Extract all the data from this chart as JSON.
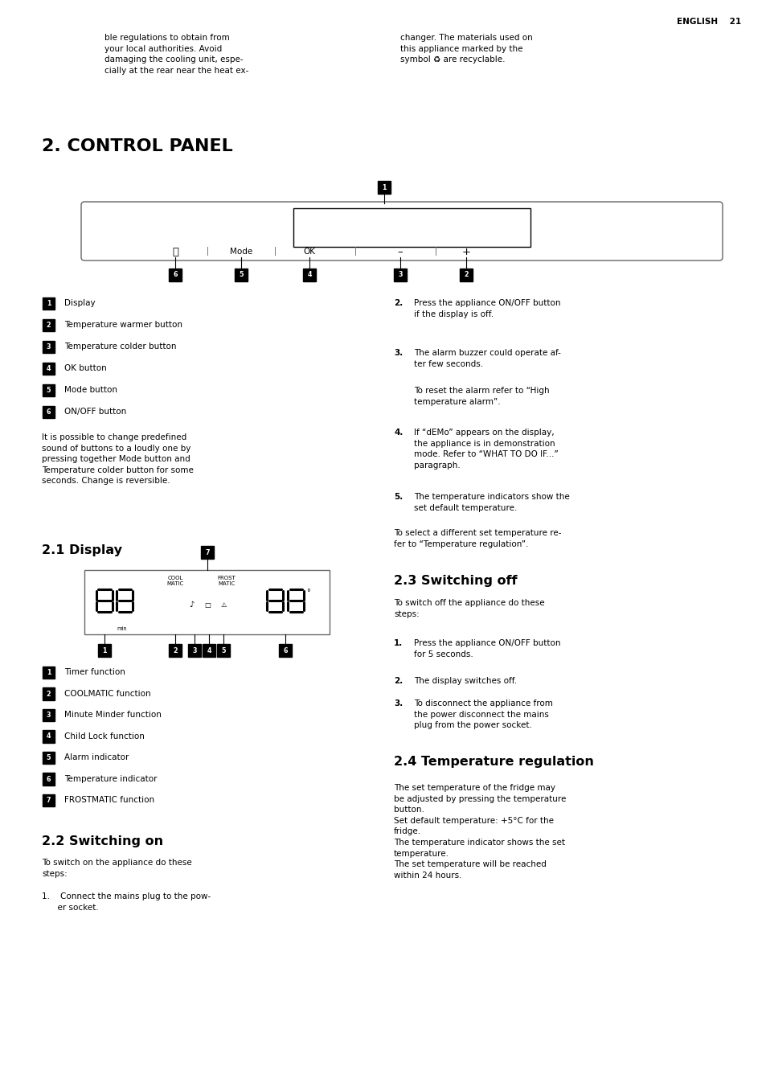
{
  "bg_color": "#ffffff",
  "page_width": 9.54,
  "page_height": 13.52,
  "header_text": "ENGLISH    21",
  "intro_left": "ble regulations to obtain from\nyour local authorities. Avoid\ndamaging the cooling unit, espe-\ncially at the rear near the heat ex-",
  "intro_right": "changer. The materials used on\nthis appliance marked by the\nsymbol ♻ are recyclable.",
  "section_title": "2. CONTROL PANEL",
  "labels_left": [
    "Display",
    "Temperature warmer button",
    "Temperature colder button",
    "OK button",
    "Mode button",
    "ON/OFF button"
  ],
  "labels_left_nums": [
    1,
    2,
    3,
    4,
    5,
    6
  ],
  "labels_extra": "It is possible to change predefined\nsound of buttons to a loudly one by\npressing together Mode button and\nTemperature colder button for some\nseconds. Change is reversible.",
  "sub21": "2.1 Display",
  "sub22": "2.2 Switching on",
  "sub23": "2.3 Switching off",
  "sub24": "2.4 Temperature regulation",
  "display_labels": [
    "Timer function",
    "COOLMATIC function",
    "Minute Minder function",
    "Child Lock function",
    "Alarm indicator",
    "Temperature indicator",
    "FROSTMATIC function"
  ],
  "display_labels_nums": [
    1,
    2,
    3,
    4,
    5,
    6,
    7
  ],
  "switching_on_text": "To switch on the appliance do these\nsteps:",
  "switching_on_step1": "1.    Connect the mains plug to the pow-\n      er socket.",
  "right_step2_num": "2.",
  "right_step2_text": "Press the appliance ON/OFF button\nif the display is off.",
  "right_step3_num": "3.",
  "right_step3_text": "The alarm buzzer could operate af-\nter few seconds.",
  "right_step3b_text": "To reset the alarm refer to “High\ntemperature alarm”.",
  "right_step4_num": "4.",
  "right_step4_text": "If “dEMo” appears on the display,\nthe appliance is in demonstration\nmode. Refer to “WHAT TO DO IF...”\nparagraph.",
  "right_step5_num": "5.",
  "right_step5_text": "The temperature indicators show the\nset default temperature.",
  "right_step5b_text": "To select a different set temperature re-\nfer to “Temperature regulation”.",
  "switching_off_text": "To switch off the appliance do these\nsteps:",
  "off_step1_num": "1.",
  "off_step1_text": "Press the appliance ON/OFF button\nfor 5 seconds.",
  "off_step2_num": "2.",
  "off_step2_text": "The display switches off.",
  "off_step3_num": "3.",
  "off_step3_text": "To disconnect the appliance from\nthe power disconnect the mains\nplug from the power socket.",
  "temp_reg_text": "The set temperature of the fridge may\nbe adjusted by pressing the temperature\nbutton.\nSet default temperature: +5°C for the\nfridge.\nThe temperature indicator shows the set\ntemperature.\nThe set temperature will be reached\nwithin 24 hours.",
  "font_body": 7.5,
  "font_subhead": 11.5,
  "font_section": 16,
  "font_header": 7.5
}
